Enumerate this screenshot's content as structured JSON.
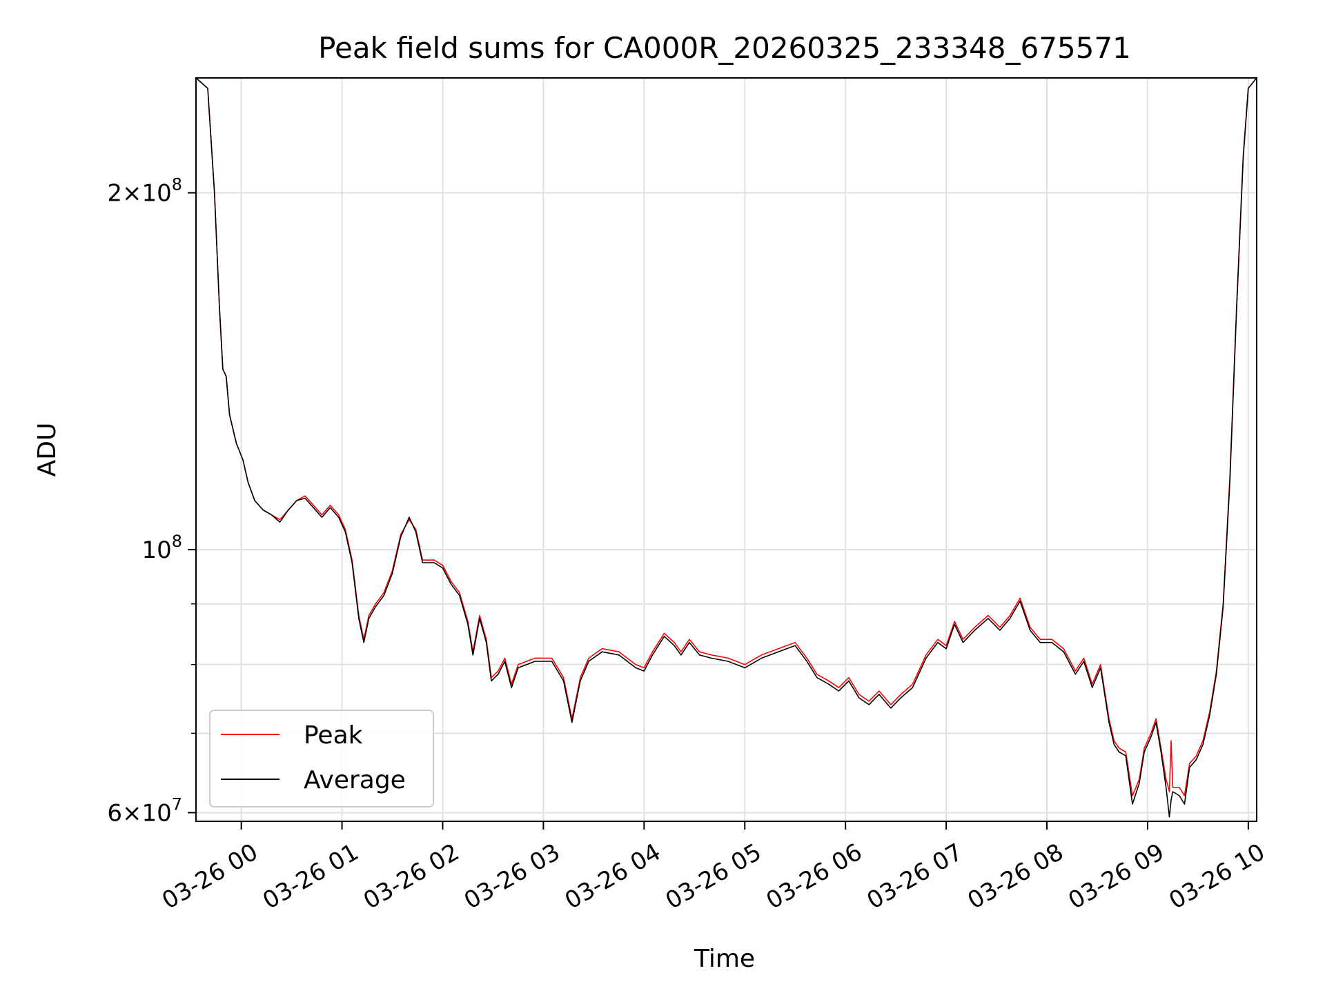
{
  "chart_data": {
    "type": "line",
    "title": "Peak field sums for CA000R_20260325_233348_675571",
    "xlabel": "Time",
    "ylabel": "ADU",
    "y_scale": "log",
    "xlim": [
      "03-25 23:33",
      "03-26 10:05"
    ],
    "ylim": [
      59000000,
      250000000
    ],
    "x_ticks": [
      "03-26 00",
      "03-26 01",
      "03-26 02",
      "03-26 03",
      "03-26 04",
      "03-26 05",
      "03-26 06",
      "03-26 07",
      "03-26 08",
      "03-26 09",
      "03-26 10"
    ],
    "y_ticks": [
      {
        "value": 60000000,
        "mantissa": "6",
        "exponent": "7"
      },
      {
        "value": 100000000,
        "mantissa": "",
        "exponent": "8"
      },
      {
        "value": 200000000,
        "mantissa": "2",
        "exponent": "8"
      }
    ],
    "y_minor_ticks": [
      70000000,
      80000000,
      90000000
    ],
    "grid": true,
    "legend": {
      "position": "lower-left"
    },
    "series": [
      {
        "name": "Peak",
        "color": "#ff0000",
        "points": [
          [
            "03-25 23:33",
            250000000
          ],
          [
            "03-25 23:40",
            245000000
          ],
          [
            "03-25 23:44",
            200000000
          ],
          [
            "03-25 23:47",
            160000000
          ],
          [
            "03-25 23:49",
            142000000
          ],
          [
            "03-25 23:51",
            140000000
          ],
          [
            "03-25 23:53",
            130000000
          ],
          [
            "03-25 23:57",
            123000000
          ],
          [
            "03-26 00:01",
            119000000
          ],
          [
            "03-26 00:04",
            114000000
          ],
          [
            "03-26 00:08",
            110000000
          ],
          [
            "03-26 00:13",
            108000000
          ],
          [
            "03-26 00:18",
            107000000
          ],
          [
            "03-26 00:23",
            106000000
          ],
          [
            "03-26 00:28",
            108000000
          ],
          [
            "03-26 00:33",
            110000000
          ],
          [
            "03-26 00:38",
            111000000
          ],
          [
            "03-26 00:43",
            109000000
          ],
          [
            "03-26 00:48",
            107000000
          ],
          [
            "03-26 00:53",
            109000000
          ],
          [
            "03-26 00:58",
            107000000
          ],
          [
            "03-26 01:02",
            104000000
          ],
          [
            "03-26 01:06",
            98000000
          ],
          [
            "03-26 01:10",
            88000000
          ],
          [
            "03-26 01:13",
            84000000
          ],
          [
            "03-26 01:16",
            88000000
          ],
          [
            "03-26 01:20",
            90000000
          ],
          [
            "03-26 01:25",
            92000000
          ],
          [
            "03-26 01:30",
            96000000
          ],
          [
            "03-26 01:35",
            103000000
          ],
          [
            "03-26 01:40",
            106000000
          ],
          [
            "03-26 01:44",
            104000000
          ],
          [
            "03-26 01:48",
            98000000
          ],
          [
            "03-26 01:55",
            98000000
          ],
          [
            "03-26 02:00",
            97000000
          ],
          [
            "03-26 02:05",
            94000000
          ],
          [
            "03-26 02:10",
            92000000
          ],
          [
            "03-26 02:15",
            87000000
          ],
          [
            "03-26 02:18",
            82000000
          ],
          [
            "03-26 02:22",
            88000000
          ],
          [
            "03-26 02:26",
            84000000
          ],
          [
            "03-26 02:29",
            78000000
          ],
          [
            "03-26 02:33",
            79000000
          ],
          [
            "03-26 02:37",
            81000000
          ],
          [
            "03-26 02:41",
            77000000
          ],
          [
            "03-26 02:45",
            80000000
          ],
          [
            "03-26 02:55",
            81000000
          ],
          [
            "03-26 03:05",
            81000000
          ],
          [
            "03-26 03:12",
            78000000
          ],
          [
            "03-26 03:17",
            72000000
          ],
          [
            "03-26 03:22",
            78000000
          ],
          [
            "03-26 03:27",
            81000000
          ],
          [
            "03-26 03:35",
            82500000
          ],
          [
            "03-26 03:45",
            82000000
          ],
          [
            "03-26 03:55",
            80000000
          ],
          [
            "03-26 04:00",
            79500000
          ],
          [
            "03-26 04:05",
            82000000
          ],
          [
            "03-26 04:12",
            85000000
          ],
          [
            "03-26 04:18",
            83500000
          ],
          [
            "03-26 04:22",
            82000000
          ],
          [
            "03-26 04:27",
            84000000
          ],
          [
            "03-26 04:33",
            82000000
          ],
          [
            "03-26 04:40",
            81500000
          ],
          [
            "03-26 04:50",
            81000000
          ],
          [
            "03-26 05:00",
            80000000
          ],
          [
            "03-26 05:10",
            81500000
          ],
          [
            "03-26 05:20",
            82500000
          ],
          [
            "03-26 05:30",
            83500000
          ],
          [
            "03-26 05:37",
            81000000
          ],
          [
            "03-26 05:43",
            78500000
          ],
          [
            "03-26 05:50",
            77500000
          ],
          [
            "03-26 05:56",
            76500000
          ],
          [
            "03-26 06:02",
            78000000
          ],
          [
            "03-26 06:08",
            75500000
          ],
          [
            "03-26 06:14",
            74500000
          ],
          [
            "03-26 06:20",
            76000000
          ],
          [
            "03-26 06:27",
            74000000
          ],
          [
            "03-26 06:33",
            75500000
          ],
          [
            "03-26 06:40",
            77000000
          ],
          [
            "03-26 06:48",
            81500000
          ],
          [
            "03-26 06:55",
            84000000
          ],
          [
            "03-26 07:00",
            83000000
          ],
          [
            "03-26 07:05",
            87000000
          ],
          [
            "03-26 07:10",
            84000000
          ],
          [
            "03-26 07:17",
            86000000
          ],
          [
            "03-26 07:25",
            88000000
          ],
          [
            "03-26 07:32",
            86000000
          ],
          [
            "03-26 07:38",
            88000000
          ],
          [
            "03-26 07:44",
            91000000
          ],
          [
            "03-26 07:50",
            86000000
          ],
          [
            "03-26 07:56",
            84000000
          ],
          [
            "03-26 08:03",
            84000000
          ],
          [
            "03-26 08:10",
            82500000
          ],
          [
            "03-26 08:17",
            79000000
          ],
          [
            "03-26 08:22",
            81000000
          ],
          [
            "03-26 08:27",
            77000000
          ],
          [
            "03-26 08:32",
            80000000
          ],
          [
            "03-26 08:37",
            72000000
          ],
          [
            "03-26 08:40",
            69000000
          ],
          [
            "03-26 08:43",
            68000000
          ],
          [
            "03-26 08:47",
            67500000
          ],
          [
            "03-26 08:51",
            62000000
          ],
          [
            "03-26 08:55",
            64000000
          ],
          [
            "03-26 08:58",
            68000000
          ],
          [
            "03-26 09:02",
            70000000
          ],
          [
            "03-26 09:05",
            72000000
          ],
          [
            "03-26 09:08",
            68000000
          ],
          [
            "03-26 09:11",
            64000000
          ],
          [
            "03-26 09:13",
            62500000
          ],
          [
            "03-26 09:14",
            69000000
          ],
          [
            "03-26 09:15",
            63000000
          ],
          [
            "03-26 09:19",
            63000000
          ],
          [
            "03-26 09:22",
            62000000
          ],
          [
            "03-26 09:25",
            66000000
          ],
          [
            "03-26 09:29",
            67000000
          ],
          [
            "03-26 09:33",
            69000000
          ],
          [
            "03-26 09:37",
            73000000
          ],
          [
            "03-26 09:41",
            79000000
          ],
          [
            "03-26 09:45",
            90000000
          ],
          [
            "03-26 09:49",
            115000000
          ],
          [
            "03-26 09:53",
            160000000
          ],
          [
            "03-26 09:57",
            215000000
          ],
          [
            "03-26 10:00",
            245000000
          ],
          [
            "03-26 10:05",
            250000000
          ]
        ]
      },
      {
        "name": "Average",
        "color": "#000000",
        "points": [
          [
            "03-25 23:33",
            250000000
          ],
          [
            "03-25 23:40",
            245000000
          ],
          [
            "03-25 23:44",
            200000000
          ],
          [
            "03-25 23:47",
            160000000
          ],
          [
            "03-25 23:49",
            142000000
          ],
          [
            "03-25 23:51",
            140000000
          ],
          [
            "03-25 23:53",
            130000000
          ],
          [
            "03-25 23:57",
            123000000
          ],
          [
            "03-26 00:01",
            119000000
          ],
          [
            "03-26 00:04",
            114000000
          ],
          [
            "03-26 00:08",
            110000000
          ],
          [
            "03-26 00:13",
            108000000
          ],
          [
            "03-26 00:18",
            107000000
          ],
          [
            "03-26 00:23",
            105500000
          ],
          [
            "03-26 00:28",
            108000000
          ],
          [
            "03-26 00:33",
            110000000
          ],
          [
            "03-26 00:38",
            110500000
          ],
          [
            "03-26 00:43",
            108500000
          ],
          [
            "03-26 00:48",
            106500000
          ],
          [
            "03-26 00:53",
            108500000
          ],
          [
            "03-26 00:58",
            106500000
          ],
          [
            "03-26 01:02",
            103500000
          ],
          [
            "03-26 01:06",
            97500000
          ],
          [
            "03-26 01:10",
            87500000
          ],
          [
            "03-26 01:13",
            83500000
          ],
          [
            "03-26 01:16",
            87500000
          ],
          [
            "03-26 01:20",
            89500000
          ],
          [
            "03-26 01:25",
            91500000
          ],
          [
            "03-26 01:30",
            95500000
          ],
          [
            "03-26 01:35",
            102500000
          ],
          [
            "03-26 01:40",
            106500000
          ],
          [
            "03-26 01:44",
            103500000
          ],
          [
            "03-26 01:48",
            97500000
          ],
          [
            "03-26 01:55",
            97500000
          ],
          [
            "03-26 02:00",
            96500000
          ],
          [
            "03-26 02:05",
            93500000
          ],
          [
            "03-26 02:10",
            91500000
          ],
          [
            "03-26 02:15",
            86500000
          ],
          [
            "03-26 02:18",
            81500000
          ],
          [
            "03-26 02:22",
            87500000
          ],
          [
            "03-26 02:26",
            83500000
          ],
          [
            "03-26 02:29",
            77500000
          ],
          [
            "03-26 02:33",
            78500000
          ],
          [
            "03-26 02:37",
            80500000
          ],
          [
            "03-26 02:41",
            76500000
          ],
          [
            "03-26 02:45",
            79500000
          ],
          [
            "03-26 02:55",
            80500000
          ],
          [
            "03-26 03:05",
            80500000
          ],
          [
            "03-26 03:12",
            77500000
          ],
          [
            "03-26 03:17",
            71500000
          ],
          [
            "03-26 03:22",
            77500000
          ],
          [
            "03-26 03:27",
            80500000
          ],
          [
            "03-26 03:35",
            82000000
          ],
          [
            "03-26 03:45",
            81500000
          ],
          [
            "03-26 03:55",
            79500000
          ],
          [
            "03-26 04:00",
            79000000
          ],
          [
            "03-26 04:05",
            81500000
          ],
          [
            "03-26 04:12",
            84500000
          ],
          [
            "03-26 04:18",
            83000000
          ],
          [
            "03-26 04:22",
            81500000
          ],
          [
            "03-26 04:27",
            83500000
          ],
          [
            "03-26 04:33",
            81500000
          ],
          [
            "03-26 04:40",
            81000000
          ],
          [
            "03-26 04:50",
            80500000
          ],
          [
            "03-26 05:00",
            79500000
          ],
          [
            "03-26 05:10",
            81000000
          ],
          [
            "03-26 05:20",
            82000000
          ],
          [
            "03-26 05:30",
            83000000
          ],
          [
            "03-26 05:37",
            80500000
          ],
          [
            "03-26 05:43",
            78000000
          ],
          [
            "03-26 05:50",
            77000000
          ],
          [
            "03-26 05:56",
            76000000
          ],
          [
            "03-26 06:02",
            77500000
          ],
          [
            "03-26 06:08",
            75000000
          ],
          [
            "03-26 06:14",
            74000000
          ],
          [
            "03-26 06:20",
            75500000
          ],
          [
            "03-26 06:27",
            73500000
          ],
          [
            "03-26 06:33",
            75000000
          ],
          [
            "03-26 06:40",
            76500000
          ],
          [
            "03-26 06:48",
            81000000
          ],
          [
            "03-26 06:55",
            83500000
          ],
          [
            "03-26 07:00",
            82500000
          ],
          [
            "03-26 07:05",
            86500000
          ],
          [
            "03-26 07:10",
            83500000
          ],
          [
            "03-26 07:17",
            85500000
          ],
          [
            "03-26 07:25",
            87500000
          ],
          [
            "03-26 07:32",
            85500000
          ],
          [
            "03-26 07:38",
            87500000
          ],
          [
            "03-26 07:44",
            90500000
          ],
          [
            "03-26 07:50",
            85500000
          ],
          [
            "03-26 07:56",
            83500000
          ],
          [
            "03-26 08:03",
            83500000
          ],
          [
            "03-26 08:10",
            82000000
          ],
          [
            "03-26 08:17",
            78500000
          ],
          [
            "03-26 08:22",
            80500000
          ],
          [
            "03-26 08:27",
            76500000
          ],
          [
            "03-26 08:32",
            79500000
          ],
          [
            "03-26 08:37",
            71500000
          ],
          [
            "03-26 08:40",
            68500000
          ],
          [
            "03-26 08:43",
            67500000
          ],
          [
            "03-26 08:47",
            67000000
          ],
          [
            "03-26 08:51",
            61000000
          ],
          [
            "03-26 08:55",
            63500000
          ],
          [
            "03-26 08:58",
            67500000
          ],
          [
            "03-26 09:02",
            69500000
          ],
          [
            "03-26 09:05",
            71500000
          ],
          [
            "03-26 09:08",
            67500000
          ],
          [
            "03-26 09:11",
            63000000
          ],
          [
            "03-26 09:13",
            59500000
          ],
          [
            "03-26 09:14",
            61500000
          ],
          [
            "03-26 09:15",
            62500000
          ],
          [
            "03-26 09:19",
            62000000
          ],
          [
            "03-26 09:22",
            61000000
          ],
          [
            "03-26 09:25",
            65500000
          ],
          [
            "03-26 09:29",
            66500000
          ],
          [
            "03-26 09:33",
            68500000
          ],
          [
            "03-26 09:37",
            72500000
          ],
          [
            "03-26 09:41",
            78500000
          ],
          [
            "03-26 09:45",
            89500000
          ],
          [
            "03-26 09:49",
            114000000
          ],
          [
            "03-26 09:53",
            159000000
          ],
          [
            "03-26 09:57",
            214000000
          ],
          [
            "03-26 10:00",
            245000000
          ],
          [
            "03-26 10:05",
            250000000
          ]
        ]
      }
    ]
  }
}
